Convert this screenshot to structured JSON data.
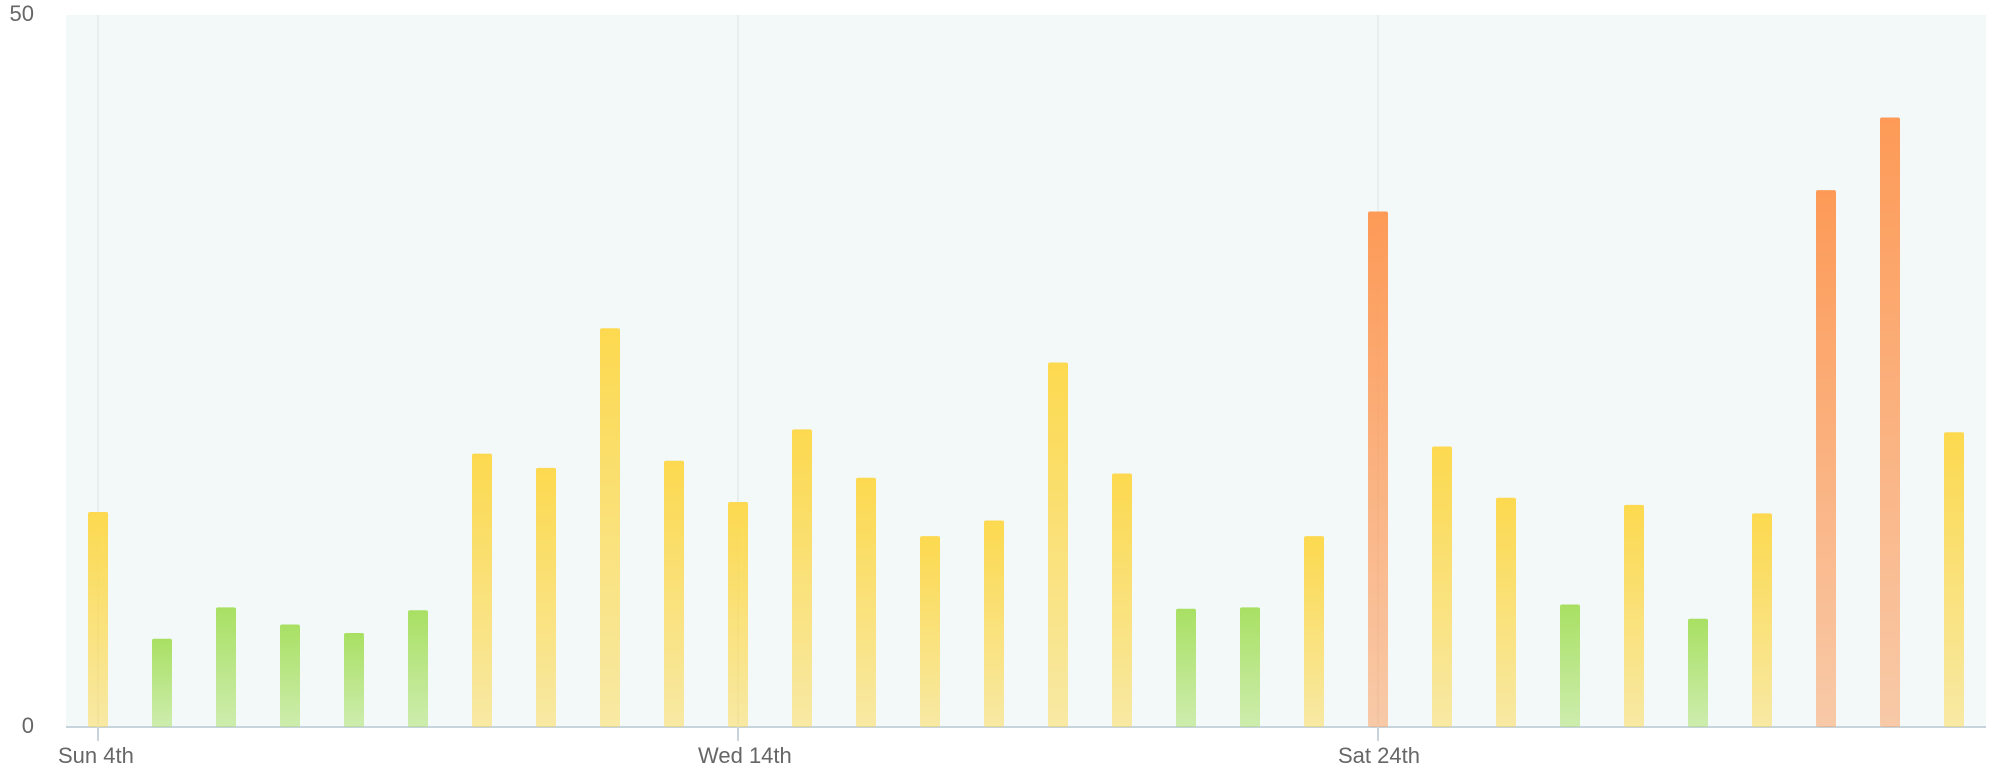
{
  "chart_data": {
    "type": "bar",
    "categories": [
      "Sun 4th",
      null,
      null,
      null,
      null,
      null,
      null,
      null,
      null,
      null,
      "Wed 14th",
      null,
      null,
      null,
      null,
      null,
      null,
      null,
      null,
      null,
      "Sat 24th",
      null,
      null,
      null,
      null,
      null,
      null,
      null,
      null,
      null
    ],
    "values": [
      15.1,
      6.2,
      8.4,
      7.2,
      6.6,
      8.2,
      19.2,
      18.2,
      28.0,
      18.7,
      15.8,
      20.9,
      17.5,
      13.4,
      14.5,
      25.6,
      17.8,
      8.3,
      8.4,
      13.4,
      36.2,
      19.7,
      16.1,
      8.6,
      15.6,
      7.6,
      15.0,
      37.7,
      42.8,
      20.7
    ],
    "colors": [
      "#fcd94f",
      "#a8e063",
      "#a8e063",
      "#a8e063",
      "#a8e063",
      "#a8e063",
      "#fcd94f",
      "#fcd94f",
      "#fcd94f",
      "#fcd94f",
      "#fcd94f",
      "#fcd94f",
      "#fcd94f",
      "#fcd94f",
      "#fcd94f",
      "#fcd94f",
      "#fcd94f",
      "#a8e063",
      "#a8e063",
      "#fcd94f",
      "#fd9a57",
      "#fcd94f",
      "#fcd94f",
      "#a8e063",
      "#fcd94f",
      "#a8e063",
      "#fcd94f",
      "#fd9a57",
      "#fd9a57",
      "#fcd94f"
    ],
    "ylim": [
      0,
      50
    ],
    "yticks": [
      0,
      50
    ],
    "grid": true
  }
}
